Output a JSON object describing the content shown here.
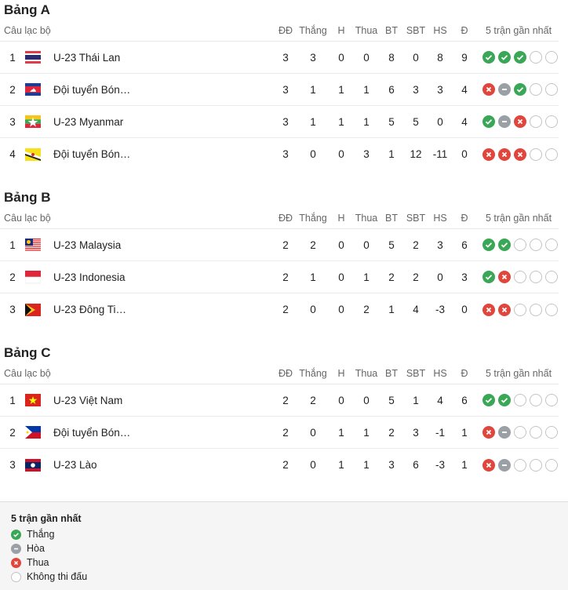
{
  "columns": {
    "club": "Câu lạc bộ",
    "played": "ĐĐ",
    "won": "Thắng",
    "drawn": "H",
    "lost": "Thua",
    "gf": "BT",
    "ga": "SBT",
    "gd": "HS",
    "pts": "Đ",
    "form": "5 trận gần nhất"
  },
  "groups": [
    {
      "title": "Bảng A",
      "rows": [
        {
          "rank": "1",
          "flag": "thailand",
          "name": "U-23 Thái Lan",
          "p": "3",
          "w": "3",
          "d": "0",
          "l": "0",
          "gf": "8",
          "ga": "0",
          "gd": "8",
          "pts": "9",
          "form": [
            "W",
            "W",
            "W",
            "N",
            "N"
          ]
        },
        {
          "rank": "2",
          "flag": "cambodia",
          "name": "Đội tuyển Bón…",
          "p": "3",
          "w": "1",
          "d": "1",
          "l": "1",
          "gf": "6",
          "ga": "3",
          "gd": "3",
          "pts": "4",
          "form": [
            "L",
            "D",
            "W",
            "N",
            "N"
          ]
        },
        {
          "rank": "3",
          "flag": "myanmar",
          "name": "U-23 Myanmar",
          "p": "3",
          "w": "1",
          "d": "1",
          "l": "1",
          "gf": "5",
          "ga": "5",
          "gd": "0",
          "pts": "4",
          "form": [
            "W",
            "D",
            "L",
            "N",
            "N"
          ]
        },
        {
          "rank": "4",
          "flag": "brunei",
          "name": "Đội tuyển Bón…",
          "p": "3",
          "w": "0",
          "d": "0",
          "l": "3",
          "gf": "1",
          "ga": "12",
          "gd": "-11",
          "pts": "0",
          "form": [
            "L",
            "L",
            "L",
            "N",
            "N"
          ]
        }
      ]
    },
    {
      "title": "Bảng B",
      "rows": [
        {
          "rank": "1",
          "flag": "malaysia",
          "name": "U-23 Malaysia",
          "p": "2",
          "w": "2",
          "d": "0",
          "l": "0",
          "gf": "5",
          "ga": "2",
          "gd": "3",
          "pts": "6",
          "form": [
            "W",
            "W",
            "N",
            "N",
            "N"
          ]
        },
        {
          "rank": "2",
          "flag": "indonesia",
          "name": "U-23 Indonesia",
          "p": "2",
          "w": "1",
          "d": "0",
          "l": "1",
          "gf": "2",
          "ga": "2",
          "gd": "0",
          "pts": "3",
          "form": [
            "W",
            "L",
            "N",
            "N",
            "N"
          ]
        },
        {
          "rank": "3",
          "flag": "timor-leste",
          "name": "U-23 Đông Ti…",
          "p": "2",
          "w": "0",
          "d": "0",
          "l": "2",
          "gf": "1",
          "ga": "4",
          "gd": "-3",
          "pts": "0",
          "form": [
            "L",
            "L",
            "N",
            "N",
            "N"
          ]
        }
      ]
    },
    {
      "title": "Bảng C",
      "rows": [
        {
          "rank": "1",
          "flag": "vietnam",
          "name": "U-23 Việt Nam",
          "p": "2",
          "w": "2",
          "d": "0",
          "l": "0",
          "gf": "5",
          "ga": "1",
          "gd": "4",
          "pts": "6",
          "form": [
            "W",
            "W",
            "N",
            "N",
            "N"
          ]
        },
        {
          "rank": "2",
          "flag": "philippines",
          "name": "Đội tuyển Bón…",
          "p": "2",
          "w": "0",
          "d": "1",
          "l": "1",
          "gf": "2",
          "ga": "3",
          "gd": "-1",
          "pts": "1",
          "form": [
            "L",
            "D",
            "N",
            "N",
            "N"
          ]
        },
        {
          "rank": "3",
          "flag": "laos",
          "name": "U-23 Lào",
          "p": "2",
          "w": "0",
          "d": "1",
          "l": "1",
          "gf": "3",
          "ga": "6",
          "gd": "-3",
          "pts": "1",
          "form": [
            "L",
            "D",
            "N",
            "N",
            "N"
          ]
        }
      ]
    }
  ],
  "legend": {
    "title": "5 trận gần nhất",
    "items": [
      {
        "key": "W",
        "label": "Thắng"
      },
      {
        "key": "D",
        "label": "Hòa"
      },
      {
        "key": "L",
        "label": "Thua"
      },
      {
        "key": "N",
        "label": "Không thi đấu"
      }
    ]
  },
  "colors": {
    "win": "#3aa757",
    "draw": "#9aa0a6",
    "loss": "#e0463c",
    "none": "#c4c4c4"
  }
}
